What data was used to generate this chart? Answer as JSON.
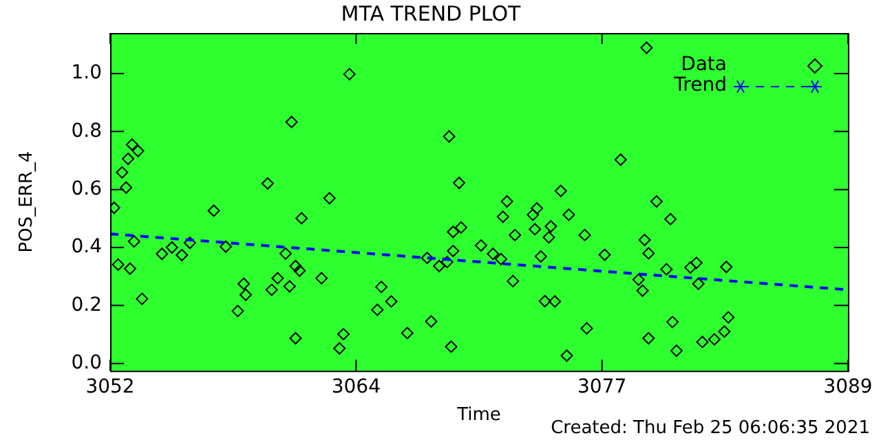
{
  "chart_data": {
    "type": "scatter",
    "title": "MTA TREND PLOT",
    "xlabel": "Time",
    "ylabel": "POS_ERR_4",
    "xlim": [
      3052,
      3089
    ],
    "xticks": [
      3052,
      {
        "value": 3064.333,
        "label": "3064"
      },
      {
        "value": 3076.667,
        "label": "3077"
      },
      3089
    ],
    "ylim": [
      -0.025,
      1.14
    ],
    "yticks": [
      {
        "value": 0,
        "label": "0.0"
      },
      0.2,
      0.4,
      0.6,
      0.8,
      {
        "value": 1,
        "label": "1.0"
      }
    ],
    "grid": false,
    "legend": "top right",
    "annotations": [
      "Created: Thu Feb 25 06:06:35 2021"
    ],
    "series": [
      {
        "name": "Data",
        "color": "#000000",
        "marker": "diamond",
        "x": [
          3052.2,
          3052.6,
          3052.8,
          3052.9,
          3053.1,
          3053.4,
          3057.2,
          3059.9,
          3061.1,
          3061.6,
          3063.0,
          3064.0,
          3069.0,
          3078.9,
          3077.6,
          3069.5,
          3071.9,
          3074.6,
          3079.4,
          3071.7,
          3073.4,
          3073.2,
          3075.0,
          3080.1,
          3052.4,
          3053.0,
          3053.2,
          3053.6,
          3054.6,
          3055.1,
          3055.6,
          3056.0,
          3057.8,
          3058.4,
          3058.7,
          3058.8,
          3060.1,
          3060.4,
          3060.8,
          3061.0,
          3061.3,
          3061.5,
          3061.3,
          3062.6,
          3063.5,
          3063.7,
          3065.4,
          3065.6,
          3066.1,
          3066.9,
          3067.9,
          3068.1,
          3068.5,
          3068.9,
          3069.1,
          3069.2,
          3069.2,
          3069.6,
          3070.6,
          3071.2,
          3071.6,
          3072.3,
          3072.2,
          3073.3,
          3073.6,
          3073.8,
          3074.3,
          3074.0,
          3074.1,
          3075.8,
          3074.9,
          3075.9,
          3076.8,
          3078.8,
          3079.0,
          3078.5,
          3078.7,
          3079.0,
          3079.9,
          3080.2,
          3080.4,
          3081.1,
          3081.4,
          3081.5,
          3081.7,
          3082.3,
          3082.8,
          3083.0,
          3082.9
        ],
        "values": [
          0.537,
          0.659,
          0.607,
          0.706,
          0.755,
          0.733,
          0.527,
          0.621,
          0.833,
          0.501,
          0.57,
          0.998,
          0.783,
          1.089,
          0.703,
          0.623,
          0.559,
          0.595,
          0.559,
          0.506,
          0.535,
          0.513,
          0.513,
          0.498,
          0.341,
          0.327,
          0.421,
          0.223,
          0.378,
          0.4,
          0.374,
          0.416,
          0.403,
          0.181,
          0.275,
          0.237,
          0.254,
          0.294,
          0.379,
          0.266,
          0.336,
          0.32,
          0.087,
          0.294,
          0.052,
          0.101,
          0.185,
          0.264,
          0.214,
          0.105,
          0.364,
          0.145,
          0.336,
          0.35,
          0.058,
          0.454,
          0.388,
          0.469,
          0.407,
          0.378,
          0.36,
          0.443,
          0.284,
          0.463,
          0.369,
          0.215,
          0.214,
          0.435,
          0.473,
          0.443,
          0.027,
          0.121,
          0.375,
          0.426,
          0.38,
          0.289,
          0.251,
          0.087,
          0.325,
          0.143,
          0.044,
          0.331,
          0.347,
          0.275,
          0.074,
          0.083,
          0.11,
          0.159,
          0.333
        ]
      },
      {
        "name": "Trend",
        "color": "#0000ff",
        "type": "line",
        "line_style": "dashed",
        "x": [
          3052,
          3089
        ],
        "values": [
          0.447,
          0.254
        ]
      }
    ]
  }
}
